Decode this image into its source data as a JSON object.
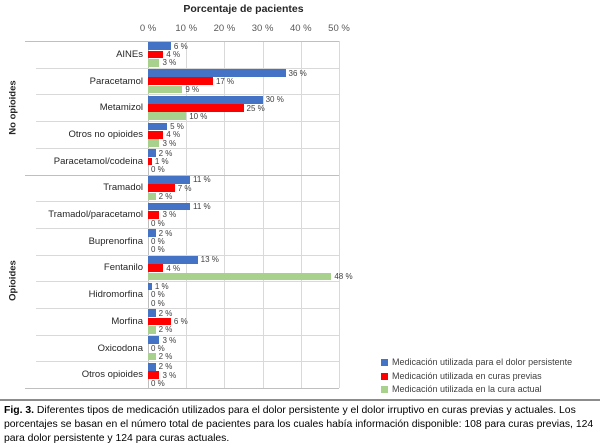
{
  "chart_data": {
    "type": "bar",
    "orientation": "horizontal",
    "title": "Porcentaje de pacientes",
    "xlabel": "",
    "ylabel": "",
    "xlim": [
      0,
      50
    ],
    "x_tick_values": [
      0,
      10,
      20,
      30,
      40,
      50
    ],
    "x_tick_labels": [
      "0 %",
      "10 %",
      "20 %",
      "30 %",
      "40 %",
      "50 %"
    ],
    "grid": true,
    "value_suffix": " %",
    "legend_position": "bottom-right",
    "groups": [
      {
        "label": "No opioides",
        "categories": [
          "AINEs",
          "Paracetamol",
          "Metamizol",
          "Otros no opioides",
          "Paracetamol/codeina"
        ]
      },
      {
        "label": "Opioides",
        "categories": [
          "Tramadol",
          "Tramadol/paracetamol",
          "Buprenorfina",
          "Fentanilo",
          "Hidromorfina",
          "Morfina",
          "Oxicodona",
          "Otros opioides"
        ]
      }
    ],
    "series": [
      {
        "name": "Medicación utilizada para el dolor persistente",
        "color": "#4472C4",
        "values": [
          6,
          36,
          30,
          5,
          2,
          11,
          11,
          2,
          13,
          1,
          2,
          3,
          2
        ]
      },
      {
        "name": "Medicación utilizada en curas previas",
        "color": "#FF0000",
        "values": [
          4,
          17,
          25,
          4,
          1,
          7,
          3,
          0,
          4,
          0,
          6,
          0,
          3
        ]
      },
      {
        "name": "Medicación utilizada en la cura actual",
        "color": "#A9D18E",
        "values": [
          3,
          9,
          10,
          3,
          0,
          2,
          0,
          0,
          48,
          0,
          2,
          2,
          0
        ]
      }
    ]
  },
  "caption": {
    "fig_label": "Fig. 3.",
    "text": "Diferentes tipos de medicación utilizados para el dolor persistente y el dolor irruptivo en curas previas y actuales. Los porcentajes se basan en el número total de pacientes para los cuales había información disponible: 108 para curas previas, 124 para dolor persistente y 124 para curas actuales."
  }
}
